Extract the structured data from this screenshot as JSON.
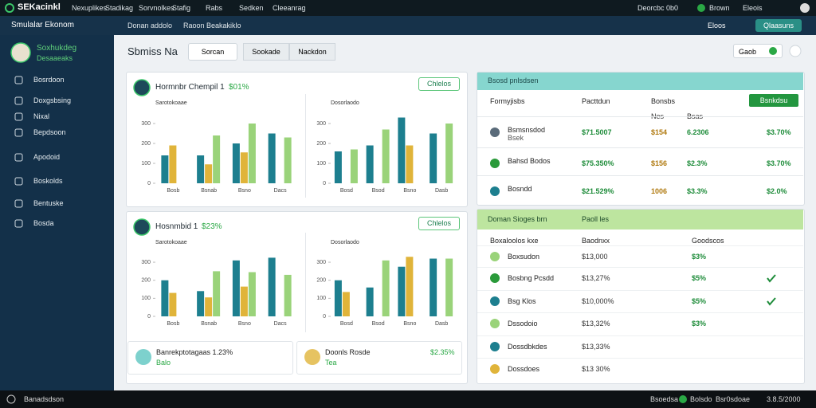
{
  "topbar": {
    "brand": "SEKacinkl",
    "menu": [
      "Nexuplikes",
      "Stadikag",
      "Sorvnolkes",
      "Stafig",
      "Rabs",
      "Sedken",
      "Cleeanrag"
    ],
    "status": "Deorcbc 0b0",
    "user": "Brown",
    "account": "Eleois"
  },
  "header": {
    "app_name": "Smulalar Ekonom",
    "nav": [
      "Donan addolo",
      "Raoon Beakakiklo"
    ],
    "filter": "Eloos",
    "action": "Qlaasuns"
  },
  "sidebar": {
    "user_name": "Soxhukdeg",
    "user_role": "Desaaeaks",
    "items": [
      "Bosrdoon",
      "Doxgsbsing",
      "Nixal",
      "Bepdsoon",
      "Apodoid",
      "Boskolds",
      "Bentuske",
      "Bosda"
    ]
  },
  "toolbar": {
    "title": "Sbmiss Na",
    "select": "Sorcan",
    "tabs": [
      "Sookade",
      "Nackdon"
    ],
    "right": "Gaob"
  },
  "panels": [
    {
      "title": "Hormnbr Chempil 1",
      "change": "$01%",
      "button": "Chlelos",
      "charts": [
        {
          "label": "Sarotokoaae",
          "ylim": [
            0,
            340
          ],
          "yticks": [
            0,
            100,
            200,
            300
          ],
          "categories": [
            "Bosb",
            "Bsnab",
            "Bsno",
            "Dacs"
          ],
          "series": [
            {
              "color": "#1d7f8f",
              "values": [
                140,
                140,
                200,
                250
              ]
            },
            {
              "color": "#e0b43a",
              "values": [
                190,
                95,
                155,
                null
              ]
            },
            {
              "color": "#9ad37a",
              "values": [
                null,
                240,
                300,
                230
              ]
            }
          ]
        },
        {
          "label": "Dosorlaodo",
          "ylim": [
            0,
            340
          ],
          "yticks": [
            0,
            100,
            200,
            300
          ],
          "categories": [
            "Bosd",
            "Bsod",
            "Bsno",
            "Dasb"
          ],
          "series": [
            {
              "color": "#1d7f8f",
              "values": [
                160,
                190,
                330,
                250
              ]
            },
            {
              "color": "#e0b43a",
              "values": [
                null,
                null,
                190,
                null
              ]
            },
            {
              "color": "#9ad37a",
              "values": [
                170,
                270,
                null,
                300
              ]
            }
          ]
        }
      ]
    },
    {
      "title": "Hosnmbid 1",
      "change": "$23%",
      "button": "Chlelos",
      "charts": [
        {
          "label": "Sarotokoaae",
          "ylim": [
            0,
            340
          ],
          "yticks": [
            0,
            100,
            200,
            300
          ],
          "categories": [
            "Bosb",
            "Bsnab",
            "Bsno",
            "Dacs"
          ],
          "series": [
            {
              "color": "#1d7f8f",
              "values": [
                200,
                140,
                310,
                325
              ]
            },
            {
              "color": "#e0b43a",
              "values": [
                130,
                105,
                165,
                null
              ]
            },
            {
              "color": "#9ad37a",
              "values": [
                null,
                250,
                245,
                230
              ]
            }
          ]
        },
        {
          "label": "Dosorlaodo",
          "ylim": [
            0,
            340
          ],
          "yticks": [
            0,
            100,
            200,
            300
          ],
          "categories": [
            "Bosd",
            "Bsod",
            "Bsno",
            "Dasb"
          ],
          "series": [
            {
              "color": "#1d7f8f",
              "values": [
                200,
                160,
                275,
                320
              ]
            },
            {
              "color": "#e0b43a",
              "values": [
                135,
                null,
                330,
                null
              ]
            },
            {
              "color": "#9ad37a",
              "values": [
                null,
                310,
                null,
                320
              ]
            }
          ]
        }
      ],
      "stats": [
        {
          "label": "Banrekptotagaas 1.23%",
          "sub": "Balo",
          "color": "#5cc6c0"
        },
        {
          "label": "Doonls Rosde",
          "value": "$2.35%",
          "sub": "Tea",
          "color": "#e0b43a"
        }
      ]
    }
  ],
  "table1": {
    "title": "Bsosd pnlsdsen",
    "button": "Bsnkdsu",
    "headers": [
      "Formyjisbs",
      "Pacttdun",
      "Bonsbs"
    ],
    "subheaders": [
      "Nes",
      "Bsas"
    ],
    "rows": [
      {
        "name": "Bsmsnsdod",
        "sub": "Bsek",
        "icon": "#5a6b7a",
        "cells": [
          "$71.5007",
          "$154",
          "6.2306",
          "$3.70%"
        ]
      },
      {
        "name": "Bahsd Bodos",
        "icon": "#2a9a3a",
        "cells": [
          "$75.350%",
          "$156",
          "$2.3%",
          "$3.70%"
        ]
      },
      {
        "name": "Bosndd",
        "icon": "#1d7f8f",
        "cells": [
          "$21.529%",
          "1006",
          "$3.3%",
          "$2.0%"
        ]
      }
    ]
  },
  "table2": {
    "title": "Doman Sioges brn",
    "title2": "Paoll les",
    "headers": [
      "Boxaloolos kxe",
      "Baodnxx",
      "Goodscos"
    ],
    "rows": [
      {
        "name": "Boxsudon",
        "icon": "#9ad37a",
        "amount": "$13,000",
        "pct": "$3%",
        "ok": false
      },
      {
        "name": "Bosbng Pcsdd",
        "icon": "#2a9a3a",
        "amount": "$13,27%",
        "pct": "$5%",
        "ok": true
      },
      {
        "name": "Bsg Klos",
        "icon": "#1d7f8f",
        "amount": "$10,000%",
        "pct": "$5%",
        "ok": true
      },
      {
        "name": "Dssodoio",
        "icon": "#9ad37a",
        "amount": "$13,32%",
        "pct": "$3%",
        "ok": false
      },
      {
        "name": "Dossdbkdes",
        "icon": "#1d7f8f",
        "amount": "$13,33%",
        "ok": false
      },
      {
        "name": "Dossdoes",
        "icon": "#e0b43a",
        "amount": "$13 30%",
        "ok": false
      }
    ]
  },
  "footer": {
    "left": "Banadsdson",
    "right": [
      "Bsoedsa",
      "Bolsdo",
      "Bsr0sdoae",
      "3.8.5/2000"
    ]
  }
}
